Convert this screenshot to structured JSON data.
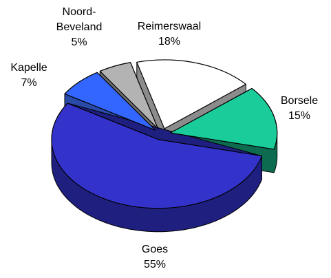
{
  "chart_data": {
    "type": "pie3d",
    "categories": [
      "Reimerswaal",
      "Borsele",
      "Goes",
      "Kapelle",
      "Noord-Beveland"
    ],
    "values": [
      18,
      15,
      55,
      7,
      5
    ],
    "value_labels": [
      "18%",
      "15%",
      "55%",
      "7%",
      "5%"
    ],
    "colors": [
      "#ffffff",
      "#19cc99",
      "#3333cc",
      "#3366ff",
      "#b3b3b3"
    ],
    "side_colors": [
      "#8c8c8c",
      "#0d6b50",
      "#1f1f80",
      "#2a4aa8",
      "#6e6e6e"
    ]
  }
}
